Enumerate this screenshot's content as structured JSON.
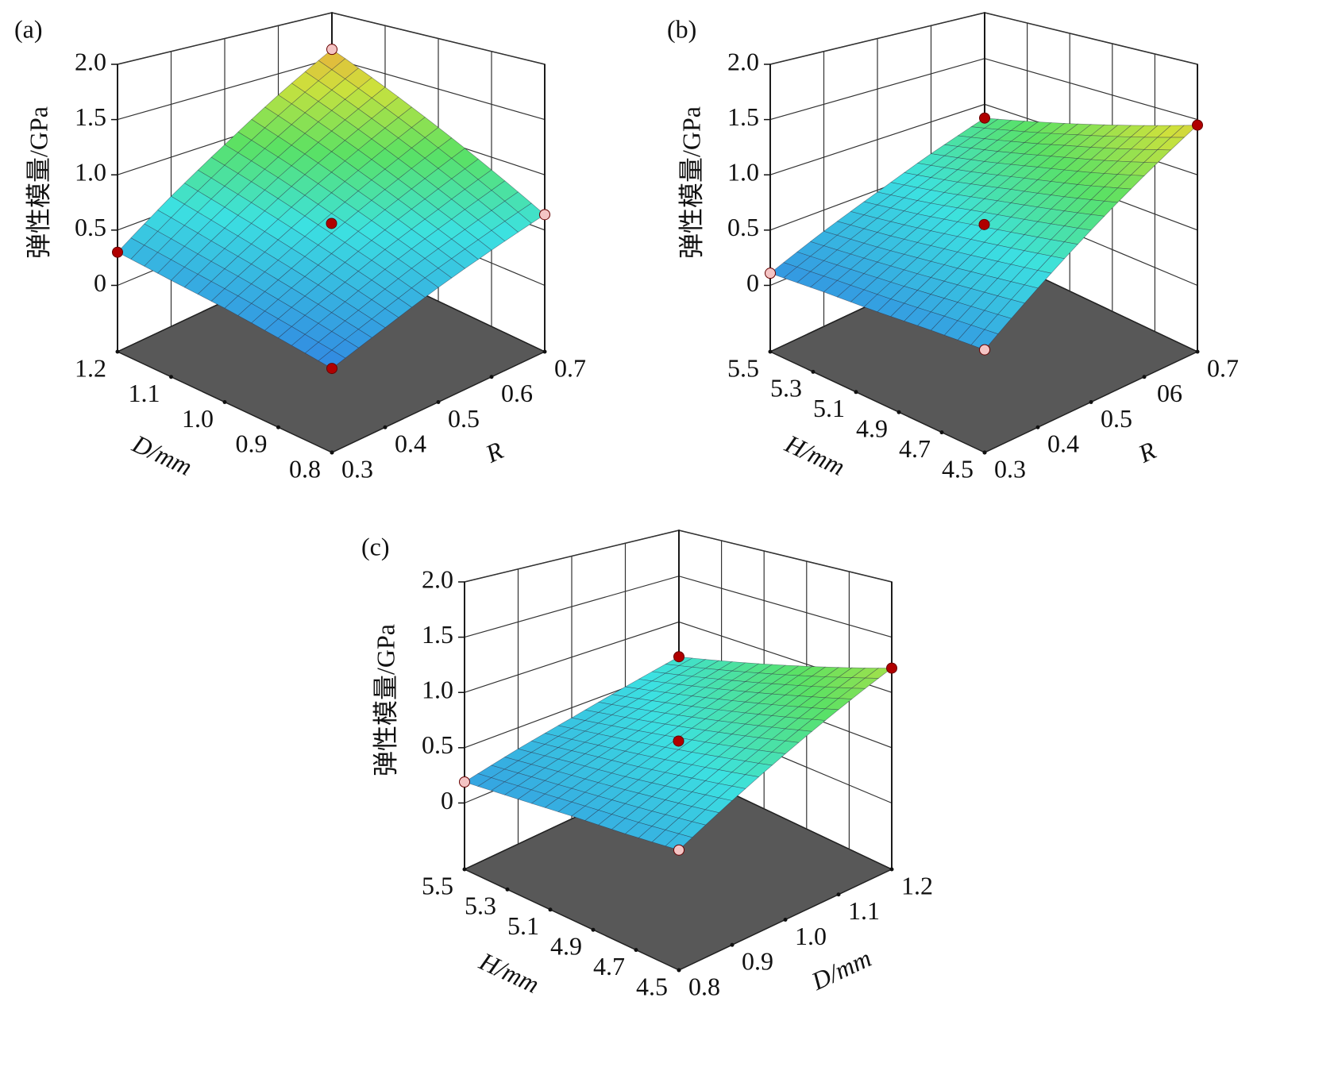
{
  "chart_data": [
    {
      "type": "surface",
      "title": "(a)",
      "xlabel": "D/mm",
      "ylabel": "R",
      "zlabel": "弹性模量/GPa",
      "x": [
        0.8,
        0.9,
        {
          "value": 1,
          "label": "1.0"
        },
        1.1,
        1.2
      ],
      "y": [
        0.3,
        0.4,
        0.5,
        0.6,
        0.7
      ],
      "z": [
        [
          0.03,
          0.1,
          0.17,
          0.23,
          0.3
        ],
        [
          0.18,
          0.29,
          0.4,
          0.51,
          0.63
        ],
        [
          0.34,
          0.49,
          0.64,
          0.8,
          0.95
        ],
        [
          0.49,
          0.68,
          0.88,
          1.08,
          1.28
        ],
        [
          0.64,
          0.88,
          1.12,
          1.36,
          1.6
        ]
      ],
      "xlim": [
        0.8,
        1.2
      ],
      "ylim": [
        0.3,
        0.7
      ],
      "zlim": [
        -0.6,
        2
      ],
      "xticks": [
        0.8,
        0.9,
        {
          "value": 1,
          "label": "1.0"
        },
        1.1,
        1.2
      ],
      "yticks": [
        0.3,
        0.4,
        0.5,
        0.6,
        0.7
      ],
      "zticks": [
        0,
        0.5,
        {
          "value": 1,
          "label": "1.0"
        },
        1.5,
        {
          "value": 2,
          "label": "2.0"
        }
      ],
      "points": {
        "x": [
          1,
          0.8,
          1.2,
          0.8,
          1.2
        ],
        "y": [
          0.5,
          0.3,
          0.3,
          0.7,
          0.7
        ],
        "z": [
          0.55,
          0.03,
          0.3,
          0.64,
          1.6
        ],
        "colors": [
          "#b00000",
          "#b00000",
          "#b00000",
          "#f4c4c4",
          "#f4c4c4"
        ]
      }
    },
    {
      "type": "surface",
      "title": "(b)",
      "xlabel": "H/mm",
      "ylabel": "R",
      "zlabel": "弹性模量/GPa",
      "x": [
        4.5,
        4.75,
        5,
        5.25,
        5.5
      ],
      "y": [
        0.3,
        0.4,
        0.5,
        0.6,
        0.7
      ],
      "z": [
        [
          0.17,
          0.16,
          0.14,
          0.13,
          0.11
        ],
        [
          0.49,
          0.44,
          0.39,
          0.34,
          0.3
        ],
        [
          0.81,
          0.73,
          0.65,
          0.56,
          0.48
        ],
        [
          1.13,
          1.01,
          0.9,
          0.78,
          0.67
        ],
        [
          1.45,
          1.3,
          1.15,
          1.0,
          0.85
        ]
      ],
      "xlim": [
        4.5,
        5.5
      ],
      "ylim": [
        0.3,
        0.7
      ],
      "zlim": [
        -0.6,
        2
      ],
      "xticks": [
        4.5,
        4.7,
        4.9,
        5.1,
        5.3,
        5.5
      ],
      "yticks": [
        0.3,
        0.4,
        0.5,
        {
          "value": 0.6,
          "label": "06"
        },
        0.7
      ],
      "zticks": [
        0,
        0.5,
        {
          "value": 1,
          "label": "1.0"
        },
        1.5,
        {
          "value": 2,
          "label": "2.0"
        }
      ],
      "points": {
        "x": [
          5,
          4.5,
          5.5,
          4.5,
          5.5
        ],
        "y": [
          0.5,
          0.3,
          0.3,
          0.7,
          0.7
        ],
        "z": [
          0.54,
          0.17,
          0.11,
          1.45,
          0.85
        ],
        "colors": [
          "#b00000",
          "#f4c4c4",
          "#f4c4c4",
          "#b00000",
          "#b00000"
        ]
      }
    },
    {
      "type": "surface",
      "title": "(c)",
      "xlabel": "H/mm",
      "ylabel": "D/mm",
      "zlabel": "弹性模量/GPa",
      "x": [
        4.5,
        4.75,
        5,
        5.25,
        5.5
      ],
      "y": [
        0.8,
        0.9,
        {
          "value": 1,
          "label": "1.0"
        },
        1.1,
        1.2
      ],
      "z": [
        [
          0.3,
          0.27,
          0.25,
          0.22,
          0.19
        ],
        [
          0.53,
          0.47,
          0.41,
          0.36,
          0.3
        ],
        [
          0.76,
          0.67,
          0.58,
          0.49,
          0.4
        ],
        [
          0.99,
          0.87,
          0.75,
          0.63,
          0.51
        ],
        [
          1.22,
          1.07,
          0.92,
          0.77,
          0.62
        ]
      ],
      "xlim": [
        4.5,
        5.5
      ],
      "ylim": [
        0.8,
        1.2
      ],
      "zlim": [
        -0.6,
        2
      ],
      "xticks": [
        4.5,
        4.7,
        4.9,
        5.1,
        5.3,
        5.5
      ],
      "yticks": [
        0.8,
        0.9,
        {
          "value": 1,
          "label": "1.0"
        },
        1.1,
        1.2
      ],
      "zticks": [
        0,
        0.5,
        {
          "value": 1,
          "label": "1.0"
        },
        1.5,
        {
          "value": 2,
          "label": "2.0"
        }
      ],
      "points": {
        "x": [
          5,
          4.5,
          5.5,
          4.5,
          5.5
        ],
        "y": [
          1,
          0.8,
          0.8,
          1.2,
          1.2
        ],
        "z": [
          0.55,
          0.3,
          0.19,
          1.22,
          0.62
        ],
        "colors": [
          "#b00000",
          "#f4c4c4",
          "#f4c4c4",
          "#b00000",
          "#b00000"
        ]
      }
    }
  ]
}
